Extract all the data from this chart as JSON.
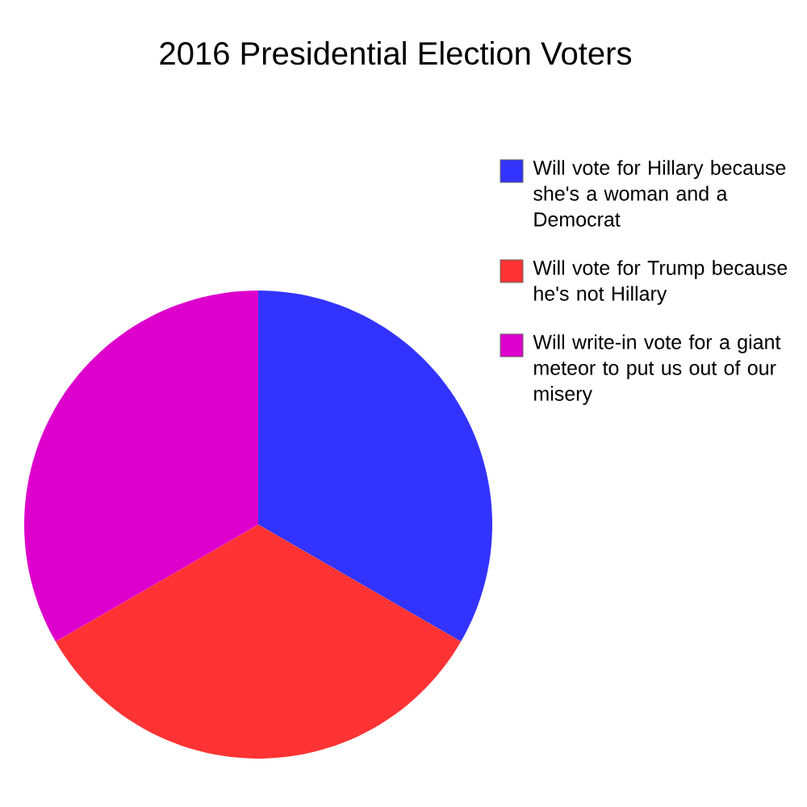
{
  "chart_data": {
    "type": "pie",
    "title": "2016 Presidential Election Voters",
    "categories": [
      "Will vote for Hillary because she's a woman and a Democrat",
      "Will vote for Trump because he's not Hillary",
      "Will write-in vote for a giant meteor to put us out of our misery"
    ],
    "values": [
      33.33,
      33.33,
      33.34
    ],
    "colors": [
      "#3333ff",
      "#ff3333",
      "#dd00cc"
    ],
    "legend": "right"
  }
}
